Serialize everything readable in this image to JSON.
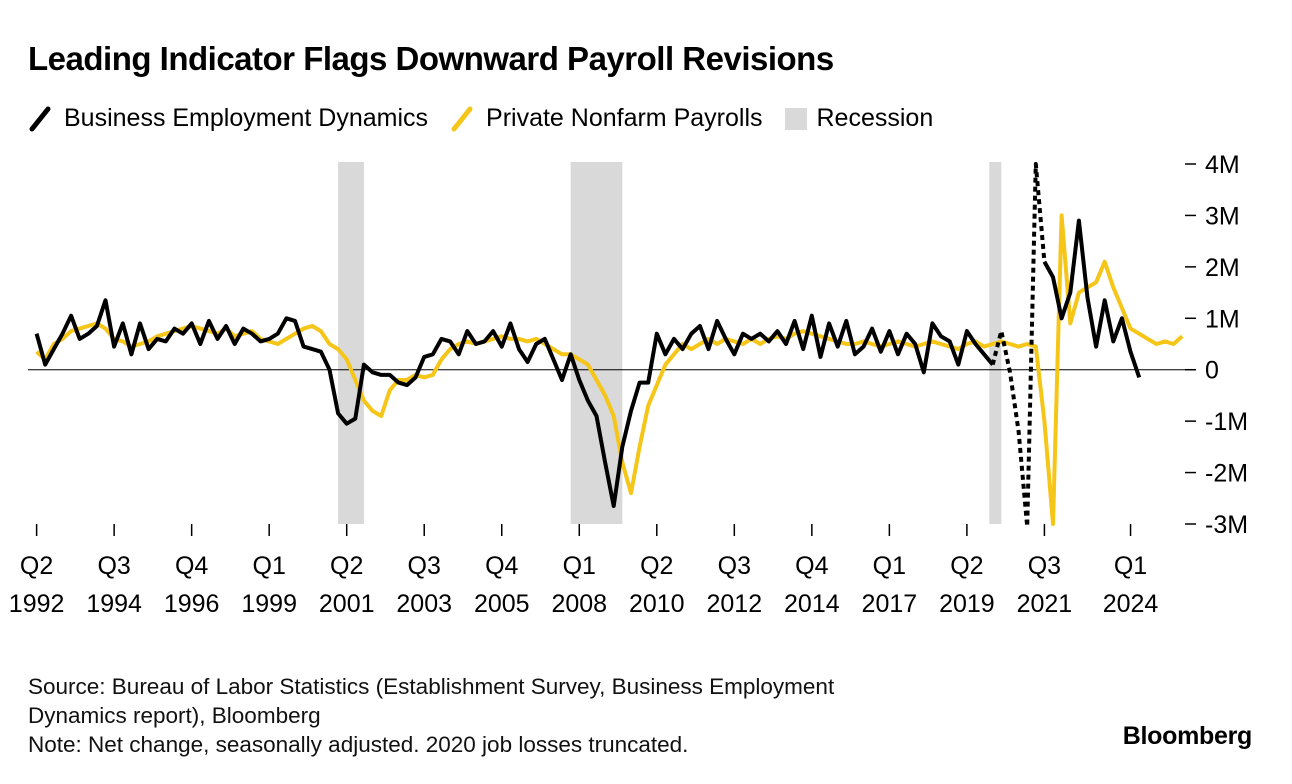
{
  "title": "Leading Indicator Flags Downward Payroll Revisions",
  "legend": {
    "bed": "Business Employment Dynamics",
    "payrolls": "Private Nonfarm Payrolls",
    "recession": "Recession"
  },
  "colors": {
    "bed": "#000000",
    "payrolls": "#f5c518",
    "recession": "#d9d9d9",
    "axis": "#000000"
  },
  "source_line1": "Source: Bureau of Labor Statistics (Establishment Survey, Business Employment",
  "source_line2": "Dynamics report), Bloomberg",
  "note": "Note: Net change, seasonally adjusted. 2020 job losses truncated.",
  "brand": "Bloomberg",
  "chart_data": {
    "type": "line",
    "title": "Leading Indicator Flags Downward Payroll Revisions",
    "xlabel": "",
    "ylabel": "",
    "units": "jobs (millions), quarterly net change",
    "x_start": 1992.25,
    "x_step": 0.25,
    "xlim": [
      1992.0,
      2025.0
    ],
    "ylim": [
      -3,
      4
    ],
    "y_ticks": [
      {
        "value": 4,
        "label": "4M"
      },
      {
        "value": 3,
        "label": "3M"
      },
      {
        "value": 2,
        "label": "2M"
      },
      {
        "value": 1,
        "label": "1M"
      },
      {
        "value": 0,
        "label": "0"
      },
      {
        "value": -1,
        "label": "-1M"
      },
      {
        "value": -2,
        "label": "-2M"
      },
      {
        "value": -3,
        "label": "-3M"
      }
    ],
    "x_ticks": [
      {
        "value": 1992.25,
        "q": "Q2",
        "year": "1992"
      },
      {
        "value": 1994.5,
        "q": "Q3",
        "year": "1994"
      },
      {
        "value": 1996.75,
        "q": "Q4",
        "year": "1996"
      },
      {
        "value": 1999.0,
        "q": "Q1",
        "year": "1999"
      },
      {
        "value": 2001.25,
        "q": "Q2",
        "year": "2001"
      },
      {
        "value": 2003.5,
        "q": "Q3",
        "year": "2003"
      },
      {
        "value": 2005.75,
        "q": "Q4",
        "year": "2005"
      },
      {
        "value": 2008.0,
        "q": "Q1",
        "year": "2008"
      },
      {
        "value": 2010.25,
        "q": "Q2",
        "year": "2010"
      },
      {
        "value": 2012.5,
        "q": "Q3",
        "year": "2012"
      },
      {
        "value": 2014.75,
        "q": "Q4",
        "year": "2014"
      },
      {
        "value": 2017.0,
        "q": "Q1",
        "year": "2017"
      },
      {
        "value": 2019.25,
        "q": "Q2",
        "year": "2019"
      },
      {
        "value": 2021.5,
        "q": "Q3",
        "year": "2021"
      },
      {
        "value": 2024.0,
        "q": "Q1",
        "year": "2024"
      }
    ],
    "recessions": [
      [
        2001.0,
        2001.75
      ],
      [
        2007.75,
        2009.25
      ],
      [
        2019.9,
        2020.25
      ]
    ],
    "series": [
      {
        "name": "Private Nonfarm Payrolls",
        "key": "payrolls",
        "values": [
          0.35,
          0.2,
          0.5,
          0.6,
          0.75,
          0.8,
          0.85,
          0.9,
          0.8,
          0.6,
          0.55,
          0.45,
          0.5,
          0.55,
          0.65,
          0.7,
          0.75,
          0.8,
          0.85,
          0.8,
          0.75,
          0.7,
          0.8,
          0.65,
          0.7,
          0.75,
          0.6,
          0.55,
          0.5,
          0.6,
          0.7,
          0.8,
          0.85,
          0.75,
          0.5,
          0.4,
          0.2,
          -0.2,
          -0.6,
          -0.8,
          -0.9,
          -0.4,
          -0.2,
          -0.2,
          -0.1,
          -0.15,
          -0.1,
          0.2,
          0.4,
          0.5,
          0.55,
          0.5,
          0.55,
          0.6,
          0.65,
          0.6,
          0.6,
          0.55,
          0.6,
          0.5,
          0.4,
          0.3,
          0.3,
          0.2,
          0.1,
          -0.2,
          -0.5,
          -0.9,
          -1.8,
          -2.4,
          -1.5,
          -0.7,
          -0.3,
          0.1,
          0.3,
          0.5,
          0.4,
          0.5,
          0.6,
          0.5,
          0.6,
          0.55,
          0.5,
          0.6,
          0.5,
          0.6,
          0.65,
          0.6,
          0.7,
          0.75,
          0.7,
          0.65,
          0.6,
          0.55,
          0.5,
          0.5,
          0.55,
          0.5,
          0.45,
          0.5,
          0.55,
          0.5,
          0.45,
          0.5,
          0.55,
          0.5,
          0.45,
          0.4,
          0.5,
          0.55,
          0.45,
          0.5,
          0.55,
          0.5,
          0.45,
          0.5,
          0.45,
          -1.0,
          -3.0,
          3.0,
          0.9,
          1.5,
          1.6,
          1.7,
          2.1,
          1.6,
          1.2,
          0.8,
          0.7,
          0.6,
          0.5,
          0.55,
          0.5,
          0.65
        ]
      },
      {
        "name": "Business Employment Dynamics",
        "key": "bed",
        "values": [
          0.7,
          0.1,
          0.4,
          0.7,
          1.05,
          0.6,
          0.7,
          0.85,
          1.35,
          0.45,
          0.9,
          0.3,
          0.9,
          0.4,
          0.6,
          0.55,
          0.8,
          0.7,
          0.9,
          0.5,
          0.95,
          0.6,
          0.85,
          0.5,
          0.8,
          0.7,
          0.55,
          0.6,
          0.7,
          1.0,
          0.95,
          0.45,
          0.4,
          0.35,
          0.0,
          -0.85,
          -1.05,
          -0.95,
          0.1,
          -0.05,
          -0.1,
          -0.1,
          -0.25,
          -0.3,
          -0.15,
          0.25,
          0.3,
          0.6,
          0.55,
          0.3,
          0.75,
          0.5,
          0.55,
          0.75,
          0.45,
          0.9,
          0.4,
          0.15,
          0.5,
          0.6,
          0.2,
          -0.2,
          0.3,
          -0.2,
          -0.6,
          -0.9,
          -1.8,
          -2.65,
          -1.5,
          -0.8,
          -0.25,
          -0.25,
          0.7,
          0.3,
          0.6,
          0.4,
          0.7,
          0.85,
          0.4,
          0.95,
          0.6,
          0.3,
          0.7,
          0.6,
          0.7,
          0.55,
          0.75,
          0.5,
          0.95,
          0.4,
          1.05,
          0.25,
          0.9,
          0.45,
          0.95,
          0.3,
          0.45,
          0.8,
          0.35,
          0.75,
          0.3,
          0.7,
          0.5,
          -0.05,
          0.9,
          0.65,
          0.55,
          0.1,
          0.75,
          0.5,
          0.3,
          0.1,
          0.75,
          -0.05,
          -1.2,
          -3.05,
          4.0,
          2.1,
          1.8,
          1.0,
          1.5,
          2.9,
          1.4,
          0.45,
          1.35,
          0.55,
          1.0,
          0.35,
          -0.15
        ],
        "dashed_from_index": 111,
        "dashed_to_index": 117
      }
    ]
  }
}
